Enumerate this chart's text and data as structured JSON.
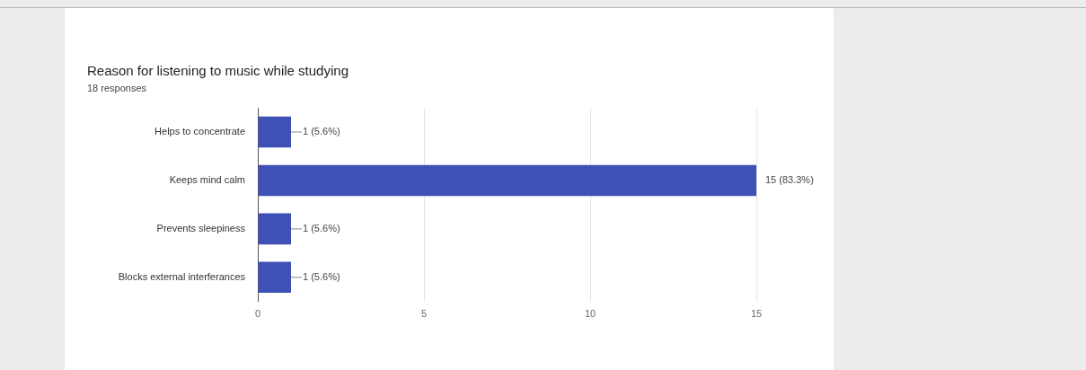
{
  "chart_data": {
    "type": "bar",
    "title": "Reason for listening to music while studying",
    "subtitle": "18 responses",
    "orientation": "horizontal",
    "categories": [
      "Helps to concentrate",
      "Keeps mind calm",
      "Prevents sleepiness",
      "Blocks external interferances"
    ],
    "values": [
      1,
      15,
      1,
      1
    ],
    "color": "#3f51b5",
    "value_labels": [
      "1 (5.6%)",
      "15 (83.3%)",
      "1 (5.6%)",
      "1 (5.6%)"
    ],
    "xlim": [
      0,
      15
    ],
    "xticks": [
      0,
      5,
      10,
      15
    ],
    "grid": "x",
    "legend": false
  }
}
